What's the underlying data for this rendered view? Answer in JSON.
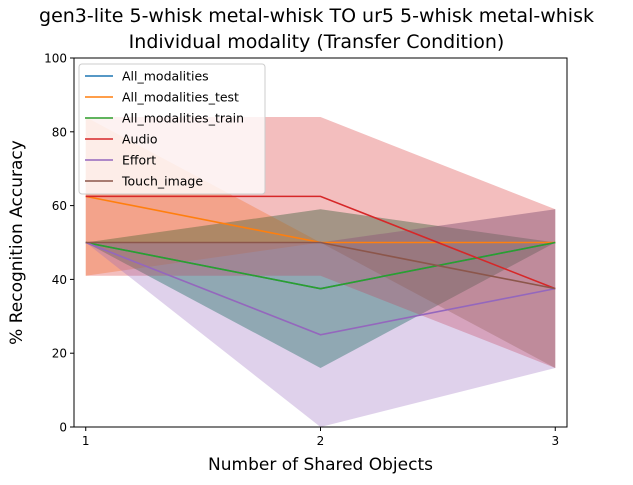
{
  "chart_data": {
    "type": "line",
    "title": "gen3-lite 5-whisk metal-whisk TO ur5 5-whisk metal-whisk",
    "subtitle": "Individual modality (Transfer Condition)",
    "xlabel": "Number of Shared Objects",
    "ylabel": "% Recognition Accuracy",
    "x": [
      1,
      2,
      3
    ],
    "xticks": [
      "1",
      "2",
      "3"
    ],
    "yticks": [
      "0",
      "20",
      "40",
      "60",
      "80",
      "100"
    ],
    "xlim": [
      0.95,
      3.05
    ],
    "ylim": [
      0,
      100
    ],
    "grid": false,
    "legend_position": "top-left",
    "series": [
      {
        "name": "All_modalities",
        "color": "#1f77b4",
        "values": [
          50,
          37.5,
          50
        ],
        "lower": [
          50,
          16,
          50
        ],
        "upper": [
          50,
          59,
          50
        ]
      },
      {
        "name": "All_modalities_test",
        "color": "#ff7f0e",
        "values": [
          62.5,
          50,
          50
        ],
        "lower": [
          41,
          50,
          50
        ],
        "upper": [
          84,
          50,
          50
        ]
      },
      {
        "name": "All_modalities_train",
        "color": "#2ca02c",
        "values": [
          50,
          37.5,
          50
        ],
        "lower": [
          50,
          16,
          50
        ],
        "upper": [
          50,
          59,
          50
        ]
      },
      {
        "name": "Audio",
        "color": "#d62728",
        "values": [
          62.5,
          62.5,
          37.5
        ],
        "lower": [
          41,
          41,
          16
        ],
        "upper": [
          84,
          84,
          59
        ]
      },
      {
        "name": "Effort",
        "color": "#9467bd",
        "values": [
          50,
          25,
          37.5
        ],
        "lower": [
          50,
          0,
          16
        ],
        "upper": [
          50,
          50,
          59
        ]
      },
      {
        "name": "Touch_image",
        "color": "#8c564b",
        "values": [
          50,
          50,
          37.5
        ],
        "lower": [
          50,
          50,
          16
        ],
        "upper": [
          50,
          50,
          59
        ]
      }
    ]
  }
}
